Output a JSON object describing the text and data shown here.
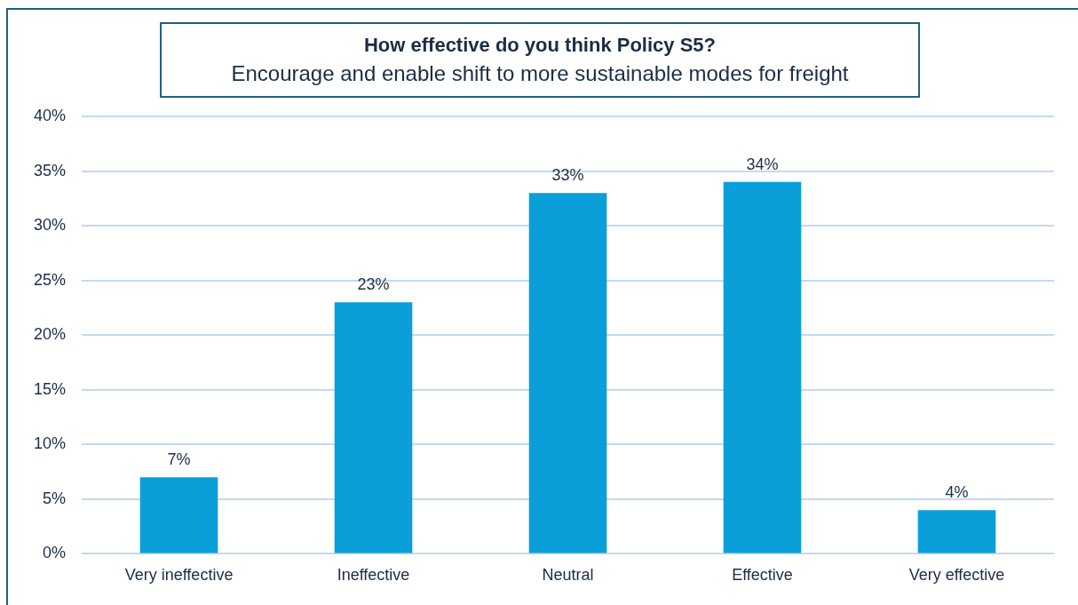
{
  "chart_data": {
    "type": "bar",
    "title": "How effective do you think Policy S5?",
    "subtitle": "Encourage and enable shift to more sustainable modes for freight",
    "categories": [
      "Very ineffective",
      "Ineffective",
      "Neutral",
      "Effective",
      "Very effective"
    ],
    "values": [
      7,
      23,
      33,
      34,
      4
    ],
    "value_labels": [
      "7%",
      "23%",
      "33%",
      "34%",
      "4%"
    ],
    "color": "#0a9fd9",
    "ylim": [
      0,
      40
    ],
    "yticks": [
      {
        "value": 0,
        "label": "0%"
      },
      {
        "value": 5,
        "label": "5%"
      },
      {
        "value": 10,
        "label": "10%"
      },
      {
        "value": 15,
        "label": "15%"
      },
      {
        "value": 20,
        "label": "20%"
      },
      {
        "value": 25,
        "label": "25%"
      },
      {
        "value": 30,
        "label": "30%"
      },
      {
        "value": 35,
        "label": "35%"
      },
      {
        "value": 40,
        "label": "40%"
      }
    ],
    "grid": "y"
  }
}
